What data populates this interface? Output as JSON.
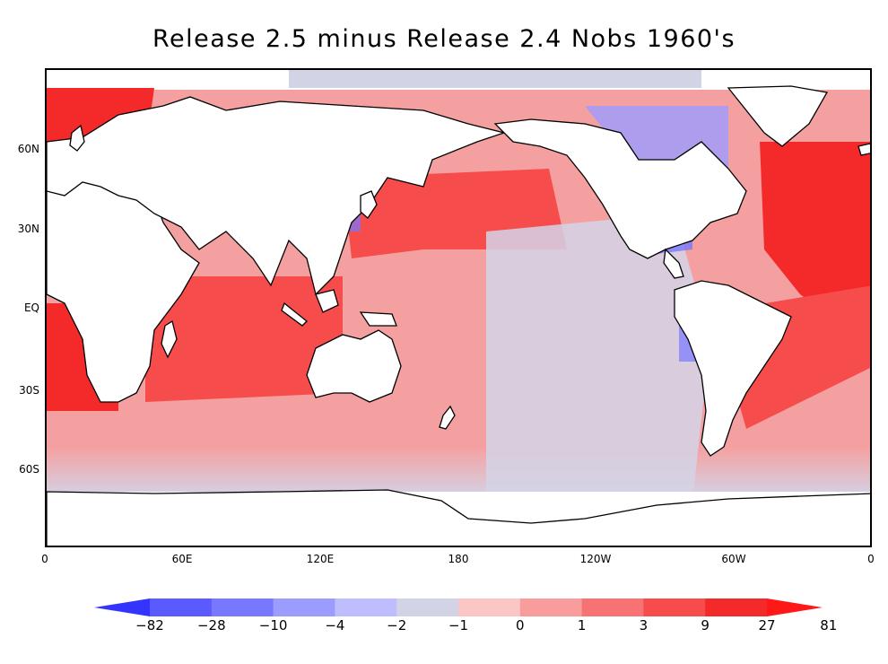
{
  "title": "Release 2.5 minus Release 2.4  Nobs 1960's",
  "lat_labels": [
    "60N",
    "30N",
    "EQ",
    "30S",
    "60S"
  ],
  "lon_labels": [
    "0",
    "60E",
    "120E",
    "180",
    "120W",
    "60W",
    "0"
  ],
  "colorbar": {
    "labels": [
      "−82",
      "−28",
      "−10",
      "−4",
      "−2",
      "−1",
      "0",
      "1",
      "3",
      "9",
      "27",
      "81"
    ],
    "colors": [
      "#3434ff",
      "#5a5aff",
      "#7878ff",
      "#9c9cff",
      "#bebeff",
      "#d3d3e6",
      "#fac6c6",
      "#f89c9c",
      "#f77373",
      "#f64c4c",
      "#f42a2a",
      "#ff1818"
    ]
  },
  "map": {
    "ocean_base_color": "#f5a0a0",
    "land_color": "#ffffff",
    "coastline_color": "#000000"
  }
}
